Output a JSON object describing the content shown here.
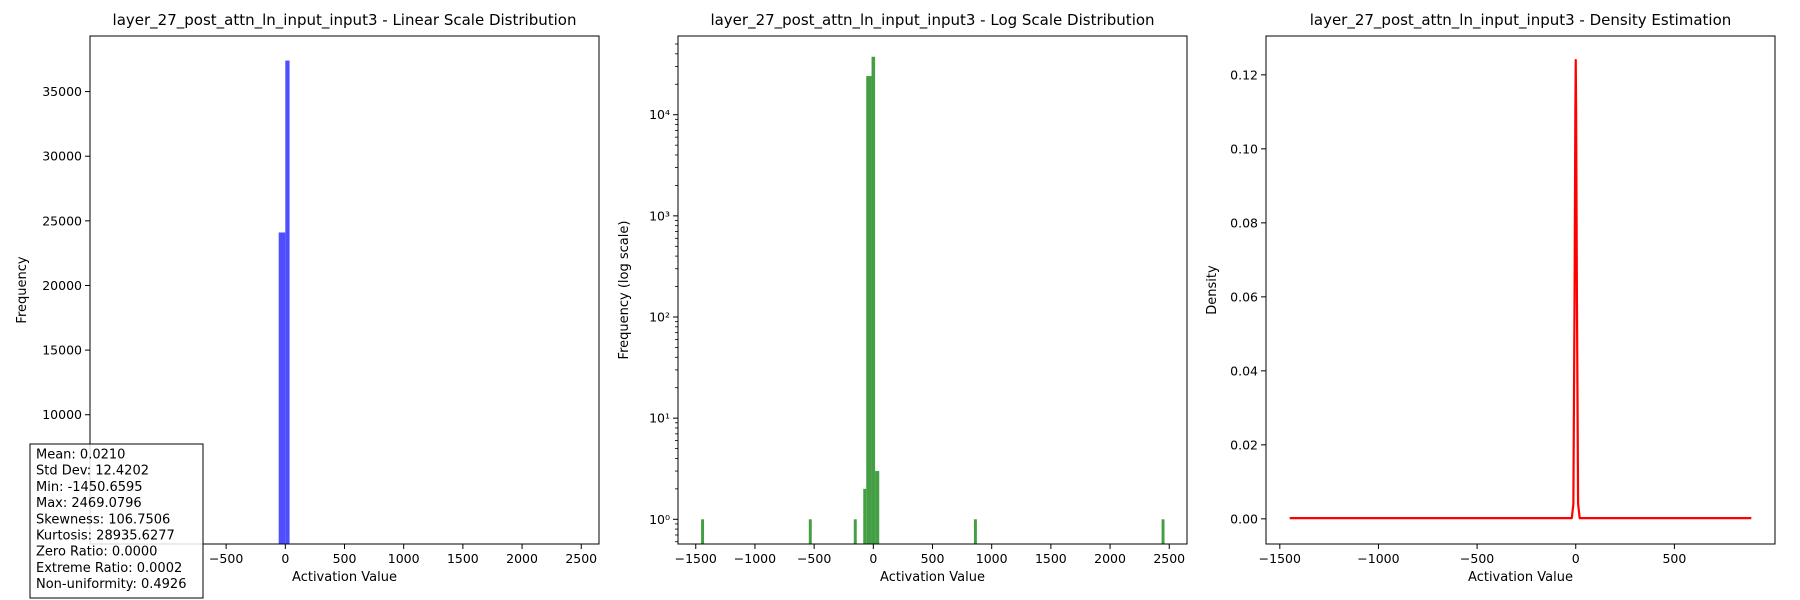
{
  "chart_data": [
    {
      "type": "bar",
      "title": "layer_27_post_attn_ln_input_input3 - Linear Scale Distribution",
      "xlabel": "Activation Value",
      "ylabel": "Frequency",
      "xlim": [
        -1650,
        2650
      ],
      "ylim": [
        0,
        39300
      ],
      "xticks": [
        -500,
        0,
        500,
        1000,
        1500,
        2000,
        2500
      ],
      "xtick_labels": [
        "−500",
        "0",
        "500",
        "1000",
        "1500",
        "2000",
        "2500"
      ],
      "yticks": [
        10000,
        15000,
        20000,
        25000,
        30000,
        35000
      ],
      "ytick_labels": [
        "10000",
        "15000",
        "20000",
        "25000",
        "30000",
        "35000"
      ],
      "color": "#4444ff",
      "bins": [
        {
          "x0": -56,
          "x1": 0,
          "value": 24100
        },
        {
          "x0": 0,
          "x1": 36,
          "value": 37400
        }
      ],
      "stats": [
        "Mean: 0.0210",
        "Std Dev: 12.4202",
        "Min: -1450.6595",
        "Max: 2469.0796",
        "Skewness: 106.7506",
        "Kurtosis: 28935.6277",
        "Zero Ratio: 0.0000",
        "Extreme Ratio: 0.0002",
        "Non-uniformity: 0.4926"
      ]
    },
    {
      "type": "bar",
      "title": "layer_27_post_attn_ln_input_input3 - Log Scale Distribution",
      "xlabel": "Activation Value",
      "ylabel": "Frequency (log scale)",
      "yscale": "log",
      "xlim": [
        -1650,
        2650
      ],
      "ylim": [
        0.57,
        60000
      ],
      "xticks": [
        -1500,
        -1000,
        -500,
        0,
        500,
        1000,
        1500,
        2000,
        2500
      ],
      "xtick_labels": [
        "−1500",
        "−1000",
        "−500",
        "0",
        "500",
        "1000",
        "1500",
        "2000",
        "2500"
      ],
      "yticks": [
        1,
        10,
        100,
        1000,
        10000
      ],
      "ytick_labels": [
        "10⁰",
        "10¹",
        "10²",
        "10³",
        "10⁴"
      ],
      "color": "#3a9a3a",
      "bins": [
        {
          "x0": -1455,
          "x1": -1430,
          "value": 1
        },
        {
          "x0": -545,
          "x1": -520,
          "value": 1
        },
        {
          "x0": -165,
          "x1": -140,
          "value": 1
        },
        {
          "x0": -85,
          "x1": -60,
          "value": 2
        },
        {
          "x0": -60,
          "x1": -15,
          "value": 24100
        },
        {
          "x0": -15,
          "x1": 15,
          "value": 37400
        },
        {
          "x0": 15,
          "x1": 50,
          "value": 3
        },
        {
          "x0": 850,
          "x1": 875,
          "value": 1
        },
        {
          "x0": 2435,
          "x1": 2460,
          "value": 1
        }
      ]
    },
    {
      "type": "line",
      "title": "layer_27_post_attn_ln_input_input3 - Density Estimation",
      "xlabel": "Activation Value",
      "ylabel": "Density",
      "xlim": [
        -1570,
        1010
      ],
      "ylim": [
        -0.0068,
        0.1305
      ],
      "xticks": [
        -1500,
        -1000,
        -500,
        0,
        500
      ],
      "xtick_labels": [
        "−1500",
        "−1000",
        "−500",
        "0",
        "500"
      ],
      "yticks": [
        0.0,
        0.02,
        0.04,
        0.06,
        0.08,
        0.1,
        0.12
      ],
      "ytick_labels": [
        "0.00",
        "0.02",
        "0.04",
        "0.06",
        "0.08",
        "0.10",
        "0.12"
      ],
      "color": "#ff0000",
      "series": [
        {
          "x": [
            -1450,
            -20,
            -12,
            -6,
            -2,
            0,
            2,
            6,
            12,
            20,
            890
          ],
          "y": [
            0.0002,
            0.0002,
            0.004,
            0.06,
            0.11,
            0.124,
            0.11,
            0.06,
            0.004,
            0.0002,
            0.0002
          ]
        }
      ]
    }
  ]
}
